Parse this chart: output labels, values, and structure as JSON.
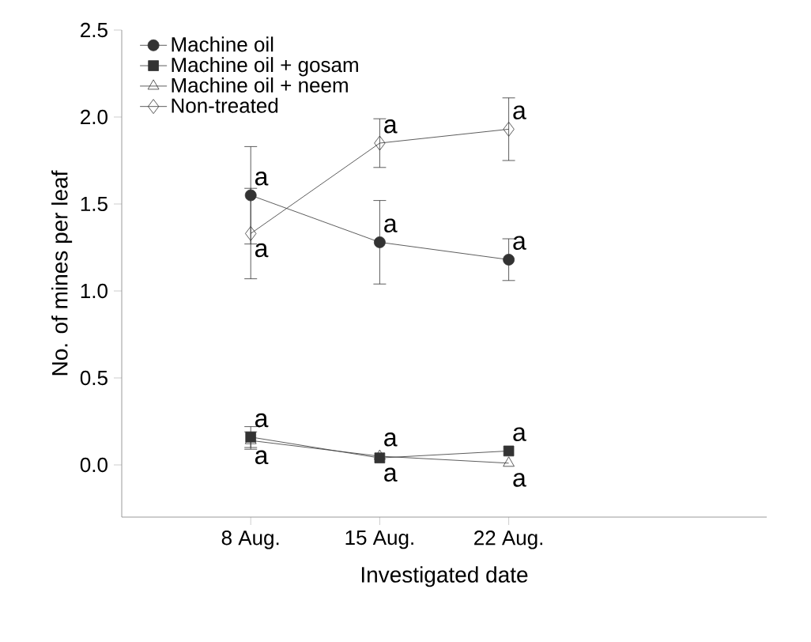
{
  "chart_data": {
    "type": "line",
    "xlabel": "Investigated date",
    "ylabel": "No. of mines per leaf",
    "categories": [
      "8 Aug.",
      "15 Aug.",
      "22 Aug."
    ],
    "ylim": [
      -0.3,
      2.5
    ],
    "yticks": [
      {
        "value": 0,
        "label": "0.0"
      },
      0.5,
      {
        "value": 1,
        "label": "1.0"
      },
      1.5,
      {
        "value": 2,
        "label": "2.0"
      },
      2.5
    ],
    "legend": "top left",
    "grid": false,
    "series": [
      {
        "name": "Machine oil",
        "color": "#333333",
        "marker": "circle",
        "values": [
          1.55,
          1.28,
          1.18
        ],
        "errors": [
          0.28,
          0.24,
          0.12
        ]
      },
      {
        "name": "Machine oil + gosam",
        "color": "#333333",
        "marker": "square",
        "values": [
          0.16,
          0.04,
          0.08
        ],
        "errors": [
          0.06,
          null,
          null
        ]
      },
      {
        "name": "Machine oil + neem",
        "color": "#333333",
        "marker": "triangle",
        "values": [
          0.14,
          0.05,
          0.01
        ],
        "errors": [
          0.05,
          null,
          null
        ]
      },
      {
        "name": "Non-treated",
        "color": "#333333",
        "marker": "diamond",
        "values": [
          1.33,
          1.85,
          1.93
        ],
        "errors": [
          0.26,
          0.14,
          0.18
        ]
      }
    ],
    "annotations": [
      {
        "text": "a",
        "x": "8 Aug.",
        "y": 1.55
      },
      {
        "text": "a",
        "x": "8 Aug.",
        "y": 1.33
      },
      {
        "text": "a",
        "x": "8 Aug.",
        "y": 0.16
      },
      {
        "text": "a",
        "x": "8 Aug.",
        "y": 0.14
      },
      {
        "text": "a",
        "x": "15 Aug.",
        "y": 1.85
      },
      {
        "text": "a",
        "x": "15 Aug.",
        "y": 1.28
      },
      {
        "text": "a",
        "x": "15 Aug.",
        "y": 0.05
      },
      {
        "text": "a",
        "x": "15 Aug.",
        "y": 0.04
      },
      {
        "text": "a",
        "x": "22 Aug.",
        "y": 1.93
      },
      {
        "text": "a",
        "x": "22 Aug.",
        "y": 1.18
      },
      {
        "text": "a",
        "x": "22 Aug.",
        "y": 0.08
      },
      {
        "text": "a",
        "x": "22 Aug.",
        "y": 0.01
      }
    ]
  }
}
